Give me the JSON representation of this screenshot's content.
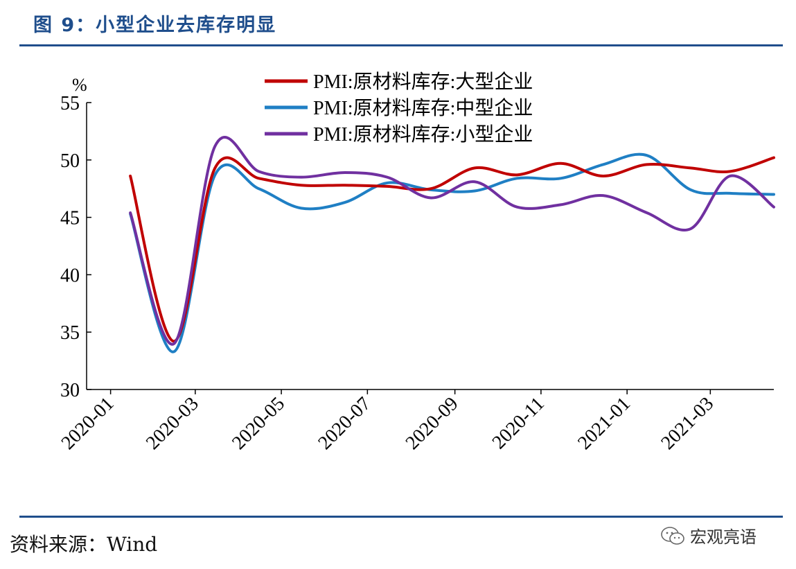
{
  "header": {
    "title": "图 9：小型企业去库存明显"
  },
  "footer": {
    "source": "资料来源：Wind",
    "watermark": "宏观亮语"
  },
  "chart_data": {
    "type": "line",
    "y_unit": "%",
    "ylim": [
      30,
      55
    ],
    "yticks": [
      30,
      35,
      40,
      45,
      50,
      55
    ],
    "xlim": [
      "2019-12-15",
      "2021-04-15"
    ],
    "x_tick_labels": [
      "2020-01",
      "2020-03",
      "2020-05",
      "2020-07",
      "2020-09",
      "2020-11",
      "2021-01",
      "2021-03"
    ],
    "x_tick_dates": [
      "2020-01-01",
      "2020-03-01",
      "2020-05-01",
      "2020-07-01",
      "2020-09-01",
      "2020-11-01",
      "2021-01-01",
      "2021-03-01"
    ],
    "x": [
      "2020-01",
      "2020-02",
      "2020-03",
      "2020-04",
      "2020-05",
      "2020-06",
      "2020-07",
      "2020-08",
      "2020-09",
      "2020-10",
      "2020-11",
      "2020-12",
      "2021-01",
      "2021-02",
      "2021-03",
      "2021-04"
    ],
    "legend_placement": "top-center",
    "grid": false,
    "series": [
      {
        "name": "PMI:原材料库存:大型企业",
        "color": "#c00000",
        "values": [
          48.6,
          34.2,
          49.3,
          48.4,
          47.8,
          47.8,
          47.7,
          47.5,
          49.3,
          48.7,
          49.7,
          48.6,
          49.6,
          49.3,
          49.0,
          50.2
        ]
      },
      {
        "name": "PMI:原材料库存:中型企业",
        "color": "#1f7fc4",
        "values": [
          45.3,
          33.3,
          48.7,
          47.5,
          45.8,
          46.3,
          48.0,
          47.4,
          47.3,
          48.4,
          48.4,
          49.6,
          50.4,
          47.4,
          47.1,
          47.0
        ]
      },
      {
        "name": "PMI:原材料库存:小型企业",
        "color": "#7030a0",
        "values": [
          45.4,
          34.0,
          51.2,
          49.0,
          48.5,
          48.9,
          48.5,
          46.7,
          48.1,
          45.9,
          46.1,
          46.9,
          45.4,
          44.0,
          48.6,
          45.9
        ]
      }
    ]
  }
}
